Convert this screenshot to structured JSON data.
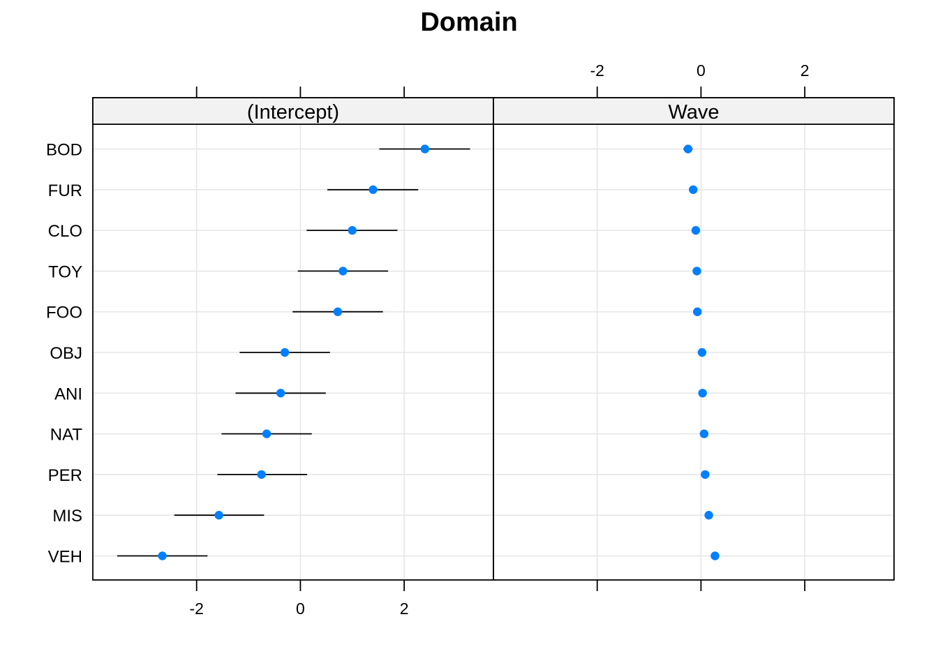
{
  "chart_data": {
    "type": "dotplot",
    "title": "Domain",
    "categories": [
      "BOD",
      "FUR",
      "CLO",
      "TOY",
      "FOO",
      "OBJ",
      "ANI",
      "NAT",
      "PER",
      "MIS",
      "VEH"
    ],
    "x_ticks": [
      -2,
      0,
      2
    ],
    "xlim": [
      -4.0,
      3.72
    ],
    "grid": true,
    "point_color": "#0080ff",
    "panels": [
      {
        "name": "(Intercept)",
        "estimates": [
          2.4,
          1.4,
          1.0,
          0.82,
          0.72,
          -0.3,
          -0.38,
          -0.65,
          -0.75,
          -1.57,
          -2.66
        ],
        "lower": [
          1.52,
          0.52,
          0.12,
          -0.05,
          -0.15,
          -1.17,
          -1.25,
          -1.52,
          -1.6,
          -2.43,
          -3.53
        ],
        "upper": [
          3.27,
          2.27,
          1.87,
          1.69,
          1.59,
          0.57,
          0.49,
          0.22,
          0.13,
          -0.7,
          -1.79
        ]
      },
      {
        "name": "Wave",
        "estimates": [
          -0.25,
          -0.15,
          -0.1,
          -0.08,
          -0.07,
          0.02,
          0.03,
          0.06,
          0.08,
          0.15,
          0.27
        ],
        "lower": [
          -0.34,
          -0.23,
          -0.18,
          -0.16,
          -0.15,
          -0.06,
          -0.05,
          -0.02,
          0.0,
          0.07,
          0.19
        ],
        "upper": [
          -0.16,
          -0.07,
          -0.02,
          0.0,
          0.01,
          0.1,
          0.11,
          0.14,
          0.16,
          0.23,
          0.35
        ]
      }
    ]
  }
}
